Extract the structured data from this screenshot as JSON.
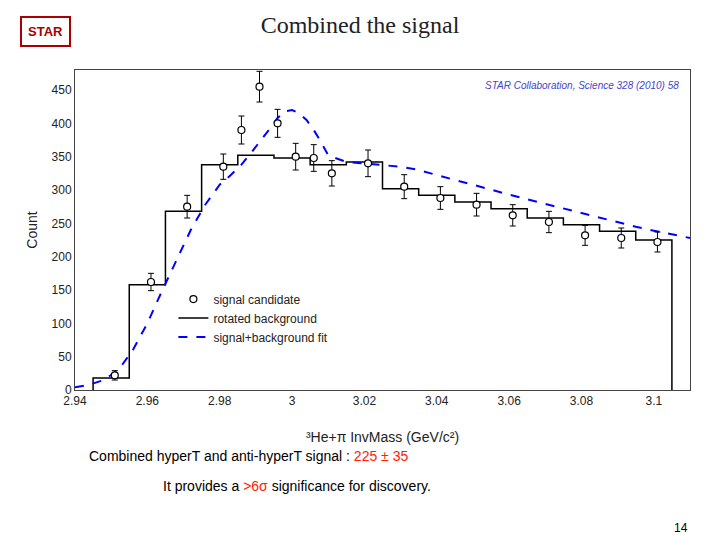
{
  "chart_data": {
    "type": "line",
    "title": "Combined the signal",
    "xlabel": "³He+π InvMass (GeV/c²)",
    "ylabel": "Count",
    "xlim": [
      2.94,
      3.11
    ],
    "ylim": [
      0,
      480
    ],
    "xticks": [
      2.94,
      2.96,
      2.98,
      3,
      3.02,
      3.04,
      3.06,
      3.08,
      3.1
    ],
    "yticks": [
      0,
      50,
      100,
      150,
      200,
      250,
      300,
      350,
      400,
      450
    ],
    "grid": false,
    "legend": "lower left",
    "series": [
      {
        "name": "rotated background",
        "type": "histogram",
        "color": "black",
        "bins": [
          2.945,
          2.955,
          2.965,
          2.975,
          2.985,
          2.995,
          3.005,
          3.015,
          3.025,
          3.035,
          3.045,
          3.055,
          3.065,
          3.075,
          3.085,
          3.095,
          3.105
        ],
        "values": [
          18,
          158,
          268,
          338,
          352,
          348,
          338,
          342,
          302,
          292,
          282,
          272,
          258,
          248,
          238,
          225
        ]
      },
      {
        "name": "signal+background fit",
        "type": "line",
        "color": "blue",
        "line_style": "dashed",
        "x": [
          2.94,
          2.944,
          2.948,
          2.952,
          2.956,
          2.96,
          2.964,
          2.968,
          2.972,
          2.976,
          2.98,
          2.983,
          2.986,
          2.989,
          2.992,
          2.994,
          2.996,
          2.998,
          3.0,
          3.002,
          3.004,
          3.006,
          3.008,
          3.01,
          3.015,
          3.02,
          3.025,
          3.03,
          3.035,
          3.04,
          3.045,
          3.05,
          3.055,
          3.06,
          3.065,
          3.07,
          3.075,
          3.08,
          3.085,
          3.09,
          3.095,
          3.1,
          3.105,
          3.11
        ],
        "values": [
          4,
          8,
          15,
          30,
          60,
          100,
          148,
          195,
          240,
          278,
          308,
          322,
          338,
          358,
          378,
          393,
          408,
          418,
          420,
          415,
          405,
          390,
          372,
          352,
          342,
          340,
          338,
          335,
          330,
          322,
          315,
          308,
          300,
          293,
          286,
          279,
          272,
          265,
          258,
          252,
          245,
          239,
          233,
          228
        ]
      },
      {
        "name": "signal candidate",
        "type": "scatter",
        "color": "black",
        "marker": "open circle",
        "x": [
          2.951,
          2.961,
          2.971,
          2.981,
          2.986,
          2.991,
          2.996,
          3.001,
          3.006,
          3.011,
          3.021,
          3.031,
          3.041,
          3.051,
          3.061,
          3.071,
          3.081,
          3.091,
          3.101
        ],
        "values": [
          22,
          162,
          275,
          335,
          390,
          455,
          400,
          350,
          348,
          325,
          340,
          305,
          288,
          278,
          262,
          252,
          232,
          228,
          222
        ],
        "errors": [
          7,
          13,
          17,
          19,
          21,
          23,
          21,
          20,
          20,
          19,
          20,
          18,
          17,
          17,
          16,
          16,
          15,
          15,
          15
        ]
      }
    ],
    "annotations": [
      [
        {
          "text": "STAR",
          "color": "#aa0000"
        }
      ],
      [
        {
          "text": "STAR Collaboration, Science 328 (2010) 58",
          "color": "#4444cc"
        }
      ],
      [
        {
          "text": "Combined hyperT and anti-hyperT signal : "
        },
        {
          "text": "225 ± 35",
          "color": "#ff2200"
        }
      ],
      [
        {
          "text": "It provides a "
        },
        {
          "text": ">6σ",
          "color": "#ff2200"
        },
        {
          "text": " significance for discovery."
        }
      ],
      [
        {
          "text": "14"
        }
      ]
    ]
  }
}
